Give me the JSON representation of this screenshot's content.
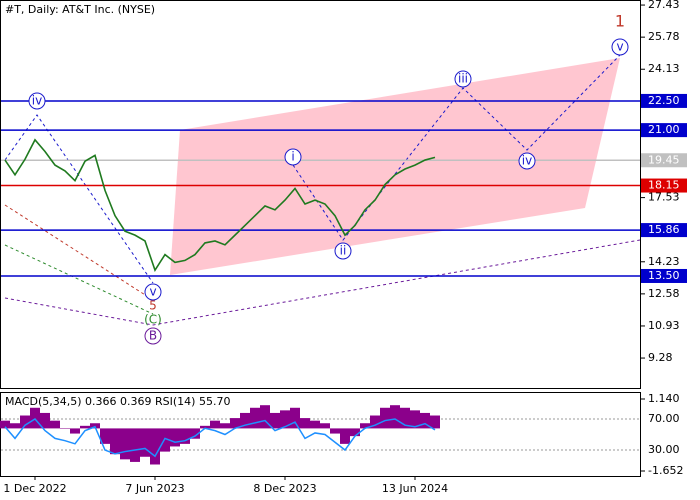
{
  "chart_data": [
    {
      "type": "line",
      "title": "#T, Daily:  AT&T Inc. (NYSE)",
      "categories": [
        null,
        null,
        null,
        "1 Dec 2022",
        null,
        null,
        null,
        null,
        null,
        null,
        null,
        null,
        null,
        null,
        null,
        "7 Jun 2023",
        null,
        null,
        null,
        null,
        null,
        null,
        null,
        null,
        null,
        null,
        null,
        null,
        "8 Dec 2023",
        null,
        null,
        null,
        null,
        null,
        null,
        null,
        null,
        null,
        null,
        null,
        null,
        "13 Jun 2024",
        null,
        null
      ],
      "values": [
        19.46,
        18.7,
        19.5,
        20.5,
        19.9,
        19.2,
        18.9,
        18.4,
        19.4,
        19.7,
        17.9,
        16.6,
        15.8,
        15.6,
        15.3,
        13.8,
        14.6,
        14.2,
        14.3,
        14.6,
        15.2,
        15.3,
        15.1,
        15.6,
        16.1,
        16.6,
        17.1,
        16.9,
        17.4,
        18.0,
        17.2,
        17.4,
        17.2,
        16.6,
        15.6,
        16.1,
        16.9,
        17.4,
        18.2,
        18.7,
        19.0,
        19.2,
        19.46,
        19.6
      ],
      "color": "#1f7a1f",
      "ylim": [
        7.74,
        27.69
      ],
      "yticks": [
        27.43,
        25.78,
        24.13,
        17.53,
        14.23,
        12.58,
        10.93,
        9.28
      ],
      "levels": [
        {
          "value": 22.5,
          "label": "22.50",
          "color": "#0000cc"
        },
        {
          "value": 21,
          "label": "21.00",
          "color": "#0000cc"
        },
        {
          "value": 19.45,
          "label": "19.45",
          "color": "#c0c0c0"
        },
        {
          "value": 18.15,
          "label": "18.15",
          "color": "#dd0000"
        },
        {
          "value": 15.86,
          "label": "15.86",
          "color": "#0000cc"
        },
        {
          "value": 13.5,
          "label": "13.50",
          "color": "#0000cc"
        }
      ],
      "annotations": [
        {
          "text": "iv",
          "color": "#1a1acc"
        },
        {
          "text": "v",
          "color": "#1a1acc"
        },
        {
          "text": "5",
          "color": "#c0392b"
        },
        {
          "text": "(C)",
          "color": "#2e8b2e"
        },
        {
          "text": "B",
          "color": "#6a1a9a"
        },
        {
          "text": "i",
          "color": "#1a1acc"
        },
        {
          "text": "ii",
          "color": "#1a1acc"
        },
        {
          "text": "iii",
          "color": "#1a1acc"
        },
        {
          "text": "iv",
          "color": "#1a1acc"
        },
        {
          "text": "v",
          "color": "#1a1acc"
        },
        {
          "text": "1",
          "color": "#c0392b"
        }
      ]
    },
    {
      "type": "bar",
      "title": "MACD(5,34,5) 0.366 0.369 RSI(14) 55.70",
      "values": [
        0.3,
        0.2,
        0.5,
        0.8,
        0.6,
        0.3,
        0.0,
        -0.2,
        0.1,
        0.2,
        -0.6,
        -1.0,
        -1.2,
        -1.3,
        -1.1,
        -1.4,
        -0.9,
        -0.7,
        -0.6,
        -0.4,
        0.1,
        0.3,
        0.2,
        0.4,
        0.6,
        0.8,
        0.9,
        0.6,
        0.7,
        0.8,
        0.4,
        0.3,
        0.2,
        -0.2,
        -0.6,
        -0.3,
        0.2,
        0.5,
        0.8,
        0.9,
        0.8,
        0.7,
        0.6,
        0.5
      ],
      "color": "#8b008b",
      "ylim": [
        -1.846,
        1.373
      ],
      "yticks": [
        {
          "value": 1.14,
          "label": "1.140"
        },
        {
          "value": -1.652,
          "label": "-1.652"
        }
      ],
      "y2lim": [
        -3.5,
        103.5
      ],
      "y2ticks": [
        {
          "value": 70,
          "label": "70.00"
        },
        {
          "value": 30,
          "label": "30.00"
        }
      ],
      "series": [
        {
          "color": "#1e90ff",
          "axis": "y2",
          "values": [
            60,
            45,
            62,
            70,
            55,
            45,
            42,
            38,
            55,
            60,
            30,
            25,
            28,
            30,
            32,
            22,
            45,
            40,
            42,
            48,
            58,
            55,
            50,
            58,
            62,
            65,
            68,
            55,
            60,
            66,
            45,
            52,
            50,
            40,
            30,
            48,
            58,
            62,
            68,
            70,
            62,
            60,
            64,
            56
          ]
        }
      ]
    }
  ]
}
